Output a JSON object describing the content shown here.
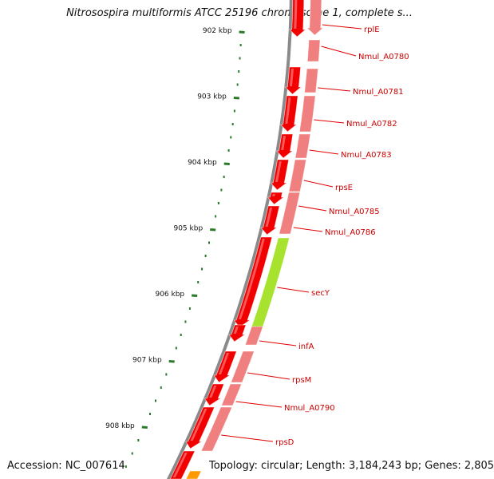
{
  "title": "Nitrosospira multiformis ATCC 25196 chromosome 1, complete s...",
  "footer": {
    "accession": "Accession: NC_007614",
    "summary": "Topology: circular; Length: 3,184,243 bp; Genes: 2,805"
  },
  "colors": {
    "backbone": "#8a8a8a",
    "cds": "#f20000",
    "gene": "#f08080",
    "secy": "#a6e22e",
    "orange": "#ff9900",
    "ticks": "#2a7a2a",
    "leader": "#e00000"
  },
  "ruler": [
    {
      "label": "902 kbp"
    },
    {
      "label": "903 kbp"
    },
    {
      "label": "904 kbp"
    },
    {
      "label": "905 kbp"
    },
    {
      "label": "906 kbp"
    },
    {
      "label": "907 kbp"
    },
    {
      "label": "908 kbp"
    }
  ],
  "genes": [
    {
      "name": "rplE"
    },
    {
      "name": "Nmul_A0780"
    },
    {
      "name": "Nmul_A0781"
    },
    {
      "name": "Nmul_A0782"
    },
    {
      "name": "Nmul_A0783"
    },
    {
      "name": "rpsE"
    },
    {
      "name": "Nmul_A0785"
    },
    {
      "name": "Nmul_A0786"
    },
    {
      "name": "secY"
    },
    {
      "name": "infA"
    },
    {
      "name": "rpsM"
    },
    {
      "name": "Nmul_A0790"
    },
    {
      "name": "rpsD"
    }
  ]
}
